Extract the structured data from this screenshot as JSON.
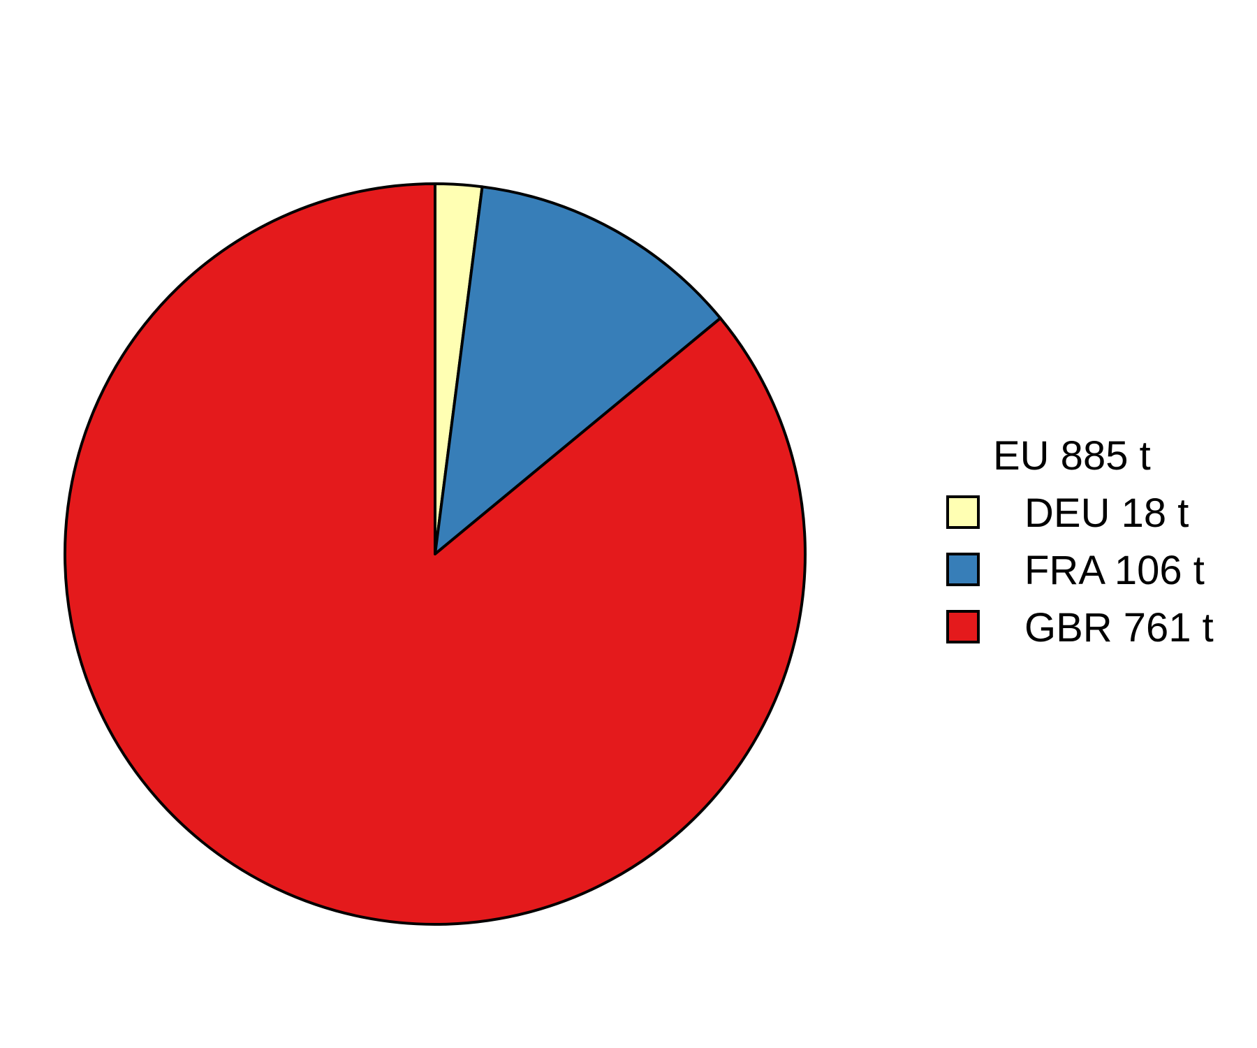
{
  "chart_data": {
    "type": "pie",
    "title": "",
    "legend_title": "EU 885 t",
    "legend_position": "right",
    "start_angle": "top",
    "direction": "clockwise",
    "slices": [
      {
        "label": "DEU 18 t",
        "category": "DEU",
        "value": 18,
        "color": "#FFFFB3"
      },
      {
        "label": "FRA 106 t",
        "category": "FRA",
        "value": 106,
        "color": "#377EB8"
      },
      {
        "label": "GBR 761 t",
        "category": "GBR",
        "value": 761,
        "color": "#E41A1C"
      }
    ],
    "total": 885,
    "unit": "t",
    "outline_color": "#000000"
  }
}
